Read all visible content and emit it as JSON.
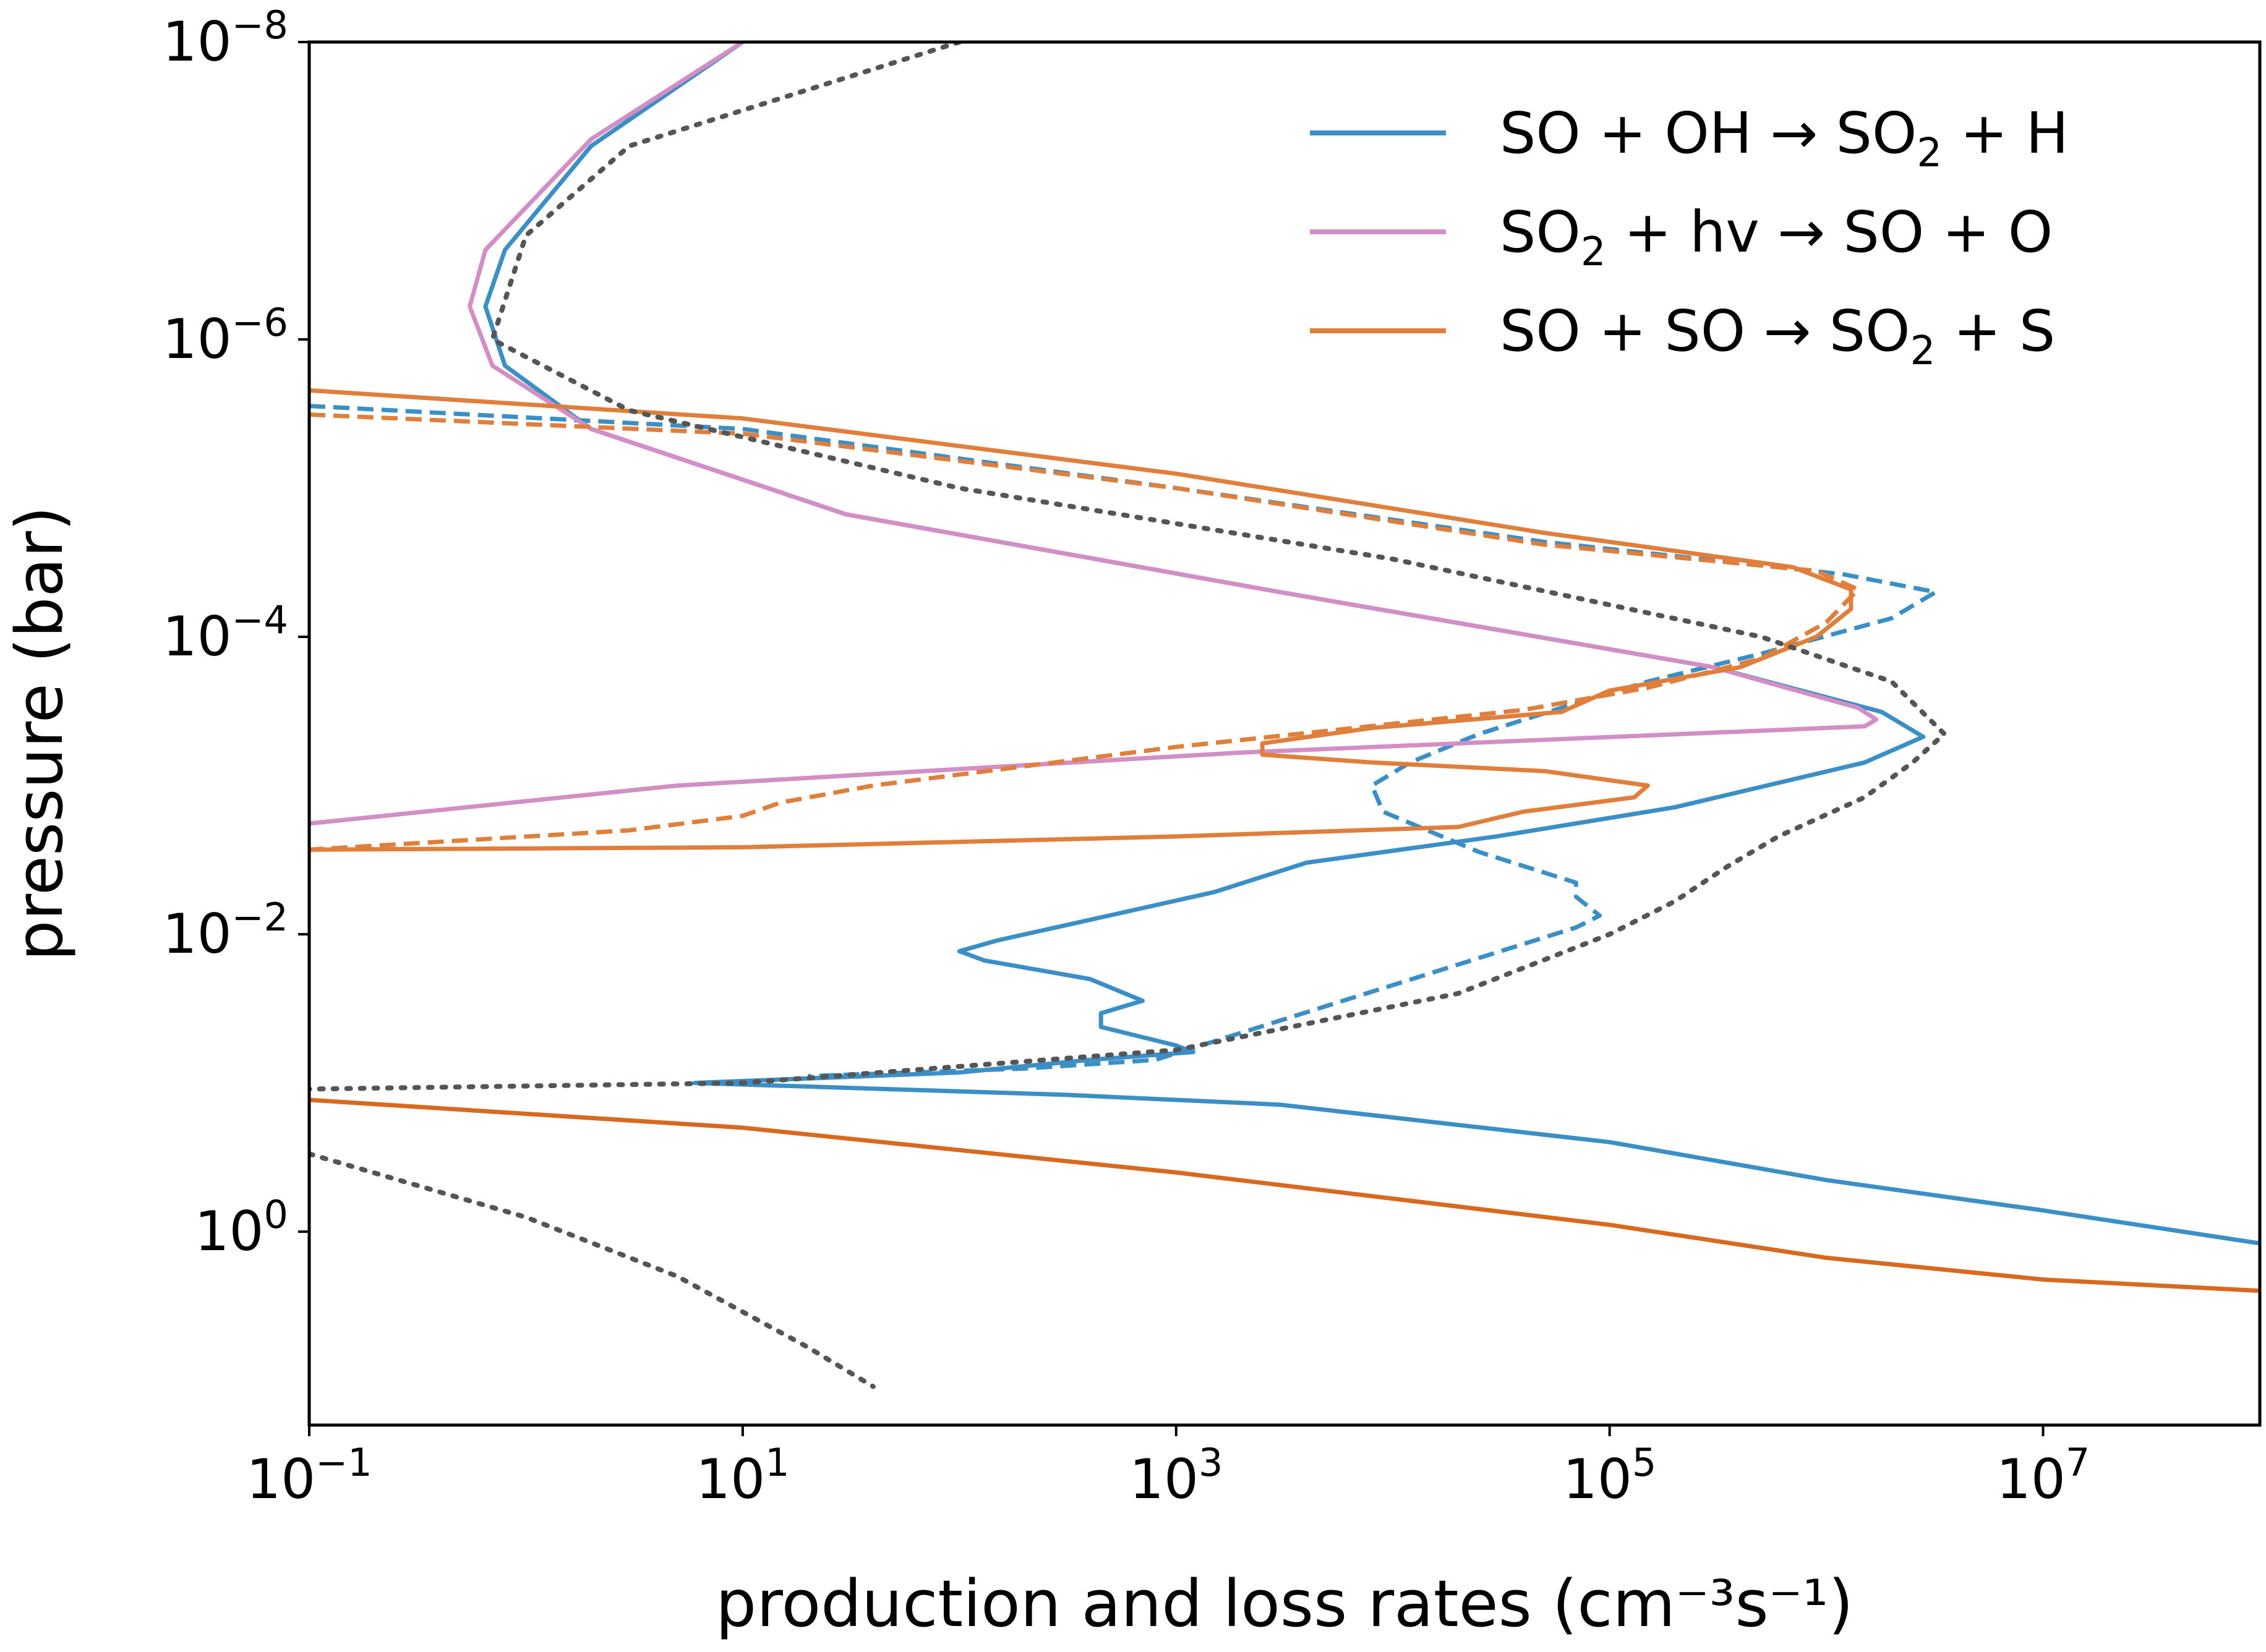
{
  "chart_data": {
    "type": "line",
    "xlabel": "production and loss rates (cm⁻³s⁻¹)",
    "ylabel": "pressure (bar)",
    "xscale": "log",
    "yscale": "log",
    "yinverted": true,
    "xlim": [
      0.1,
      100000000
    ],
    "ylim": [
      20,
      1e-08
    ],
    "xticks": [
      {
        "value": 0.1,
        "base": "10",
        "exp": "−1"
      },
      {
        "value": 10,
        "base": "10",
        "exp": "1"
      },
      {
        "value": 1000,
        "base": "10",
        "exp": "3"
      },
      {
        "value": 100000,
        "base": "10",
        "exp": "5"
      },
      {
        "value": 10000000,
        "base": "10",
        "exp": "7"
      }
    ],
    "yticks": [
      {
        "value": 1e-08,
        "base": "10",
        "exp": "−8"
      },
      {
        "value": 1e-06,
        "base": "10",
        "exp": "−6"
      },
      {
        "value": 0.0001,
        "base": "10",
        "exp": "−4"
      },
      {
        "value": 0.01,
        "base": "10",
        "exp": "−2"
      },
      {
        "value": 1,
        "base": "10",
        "exp": "0"
      }
    ],
    "grid": false,
    "legend_position": "top-right",
    "legend": [
      {
        "series": "so_oh",
        "parts": [
          "SO + OH → SO",
          "2",
          " + H"
        ]
      },
      {
        "series": "so2_hv",
        "parts": [
          "SO",
          "2",
          " + hv → SO + O"
        ]
      },
      {
        "series": "so_so",
        "parts": [
          "SO + SO → SO",
          "2",
          " + S"
        ]
      }
    ],
    "series": [
      {
        "id": "so_oh",
        "color": "#3a8fc6",
        "dash": "solid",
        "points": [
          [
            10,
            1e-08
          ],
          [
            2,
            5e-08
          ],
          [
            0.8,
            2.5e-07
          ],
          [
            0.65,
            6e-07
          ],
          [
            0.8,
            1.5e-06
          ],
          [
            2,
            4e-06
          ],
          [
            30,
            1.5e-05
          ],
          [
            3000,
            5e-05
          ],
          [
            300000,
            0.00016
          ],
          [
            1800000,
            0.00032
          ],
          [
            2800000,
            0.00047
          ],
          [
            1500000,
            0.0007
          ],
          [
            200000,
            0.0014
          ],
          [
            30000,
            0.0022
          ],
          [
            4000,
            0.0033
          ],
          [
            1500,
            0.0052
          ],
          [
            400,
            0.008
          ],
          [
            150,
            0.011
          ],
          [
            100,
            0.013
          ],
          [
            130,
            0.015
          ],
          [
            400,
            0.02
          ],
          [
            700,
            0.028
          ],
          [
            450,
            0.034
          ],
          [
            450,
            0.042
          ],
          [
            1000,
            0.056
          ],
          [
            1200,
            0.062
          ],
          [
            400,
            0.07
          ],
          [
            100,
            0.085
          ],
          [
            6,
            0.1
          ],
          [
            300,
            0.12
          ],
          [
            3000,
            0.14
          ],
          [
            100000,
            0.25
          ],
          [
            1000000,
            0.45
          ],
          [
            10000000,
            0.72
          ],
          [
            100000000,
            1.2
          ]
        ]
      },
      {
        "id": "so_oh_dashed",
        "color": "#3a8fc6",
        "dash": "dashed",
        "points": [
          [
            0.1,
            2.8e-06
          ],
          [
            10,
            4e-06
          ],
          [
            1000,
            1e-05
          ],
          [
            50000,
            2.3e-05
          ],
          [
            1200000,
            3.8e-05
          ],
          [
            3200000,
            5e-05
          ],
          [
            2000000,
            7.5e-05
          ],
          [
            500000,
            0.00013
          ],
          [
            150000,
            0.0002
          ],
          [
            60000,
            0.0003
          ],
          [
            25000,
            0.00045
          ],
          [
            12000,
            0.0007
          ],
          [
            8000,
            0.001
          ],
          [
            9000,
            0.0015
          ],
          [
            25000,
            0.0028
          ],
          [
            70000,
            0.0045
          ],
          [
            70000,
            0.0056
          ],
          [
            90000,
            0.0075
          ],
          [
            70000,
            0.009
          ],
          [
            800,
            0.07
          ],
          [
            200,
            0.08
          ],
          [
            20,
            0.09
          ]
        ]
      },
      {
        "id": "so2_hv",
        "color": "#d38ec6",
        "dash": "solid",
        "points": [
          [
            10,
            1e-08
          ],
          [
            2,
            4.5e-08
          ],
          [
            0.65,
            2.5e-07
          ],
          [
            0.55,
            6e-07
          ],
          [
            0.7,
            1.5e-06
          ],
          [
            2,
            4e-06
          ],
          [
            30,
            1.5e-05
          ],
          [
            3000,
            5e-05
          ],
          [
            300000,
            0.00016
          ],
          [
            1400000,
            0.0003
          ],
          [
            1700000,
            0.00036
          ],
          [
            1500000,
            0.0004
          ],
          [
            2000,
            0.0006
          ],
          [
            5,
            0.001
          ],
          [
            0.1,
            0.0018
          ]
        ]
      },
      {
        "id": "so_so",
        "color": "#e07f3c",
        "dash": "solid",
        "points": [
          [
            0.1,
            2.2e-06
          ],
          [
            10,
            3.4e-06
          ],
          [
            1000,
            8e-06
          ],
          [
            50000,
            2e-05
          ],
          [
            700000,
            3.4e-05
          ],
          [
            1300000,
            4.8e-05
          ],
          [
            1300000,
            6.5e-05
          ],
          [
            900000,
            0.0001
          ],
          [
            400000,
            0.00016
          ],
          [
            100000,
            0.00023
          ],
          [
            60000,
            0.00032
          ],
          [
            8000,
            0.00041
          ],
          [
            2500,
            0.00052
          ],
          [
            2500,
            0.00062
          ],
          [
            8000,
            0.0007
          ],
          [
            50000,
            0.0008
          ],
          [
            150000,
            0.001
          ],
          [
            130000,
            0.0012
          ],
          [
            40000,
            0.0015
          ],
          [
            20000,
            0.0019
          ],
          [
            1000,
            0.0022
          ],
          [
            10,
            0.0026
          ],
          [
            0.1,
            0.0027
          ]
        ]
      },
      {
        "id": "so_so_dashed",
        "color": "#e07f3c",
        "dash": "dashed",
        "points": [
          [
            0.1,
            3.2e-06
          ],
          [
            10,
            4.3e-06
          ],
          [
            1000,
            1e-05
          ],
          [
            50000,
            2.4e-05
          ],
          [
            900000,
            3.6e-05
          ],
          [
            1400000,
            4.8e-05
          ],
          [
            1000000,
            8e-05
          ],
          [
            500000,
            0.00014
          ],
          [
            150000,
            0.00022
          ],
          [
            40000,
            0.00031
          ],
          [
            1000,
            0.00055
          ],
          [
            40,
            0.001
          ],
          [
            15,
            0.0013
          ],
          [
            10,
            0.0016
          ],
          [
            3,
            0.002
          ],
          [
            0.1,
            0.0027
          ]
        ]
      },
      {
        "id": "lower_orange",
        "color": "#d86a1f",
        "dash": "solid",
        "points": [
          [
            0.1,
            0.13
          ],
          [
            10,
            0.2
          ],
          [
            1000,
            0.4
          ],
          [
            100000,
            0.9
          ],
          [
            1000000,
            1.5
          ],
          [
            10000000,
            2.1
          ],
          [
            100000000,
            2.5
          ]
        ]
      },
      {
        "id": "total_dotted",
        "color": "#555555",
        "dash": "dotted",
        "points": [
          [
            100,
            1e-08
          ],
          [
            3,
            5e-08
          ],
          [
            1,
            2e-07
          ],
          [
            0.7,
            1e-06
          ],
          [
            3,
            3e-06
          ],
          [
            100,
            1e-05
          ],
          [
            10000,
            3e-05
          ],
          [
            500000,
            0.0001
          ],
          [
            2000000,
            0.0002
          ],
          [
            3500000,
            0.00045
          ],
          [
            2500000,
            0.0007
          ],
          [
            1500000,
            0.0012
          ],
          [
            600000,
            0.0022
          ],
          [
            350000,
            0.0035
          ],
          [
            200000,
            0.006
          ],
          [
            100000,
            0.01
          ],
          [
            20000,
            0.025
          ],
          [
            1000,
            0.06
          ],
          [
            10,
            0.1
          ],
          [
            0.1,
            0.11
          ]
        ]
      },
      {
        "id": "lower_dotted",
        "color": "#555555",
        "dash": "dotted",
        "points": [
          [
            0.1,
            0.3
          ],
          [
            1,
            0.8
          ],
          [
            5,
            2
          ],
          [
            20,
            6
          ],
          [
            40,
            11
          ]
        ]
      }
    ]
  }
}
